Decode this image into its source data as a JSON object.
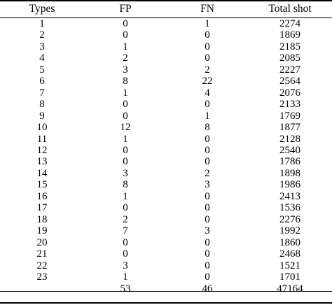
{
  "table": {
    "headers": [
      "Types",
      "FP",
      "FN",
      "Total shot"
    ],
    "rows": [
      [
        "1",
        "0",
        "1",
        "2274"
      ],
      [
        "2",
        "0",
        "0",
        "1869"
      ],
      [
        "3",
        "1",
        "0",
        "2185"
      ],
      [
        "4",
        "2",
        "0",
        "2085"
      ],
      [
        "5",
        "3",
        "2",
        "2227"
      ],
      [
        "6",
        "8",
        "22",
        "2564"
      ],
      [
        "7",
        "1",
        "4",
        "2076"
      ],
      [
        "8",
        "0",
        "0",
        "2133"
      ],
      [
        "9",
        "0",
        "1",
        "1769"
      ],
      [
        "10",
        "12",
        "8",
        "1877"
      ],
      [
        "11",
        "1",
        "0",
        "2128"
      ],
      [
        "12",
        "0",
        "0",
        "2540"
      ],
      [
        "13",
        "0",
        "0",
        "1786"
      ],
      [
        "14",
        "3",
        "2",
        "1898"
      ],
      [
        "15",
        "8",
        "3",
        "1986"
      ],
      [
        "16",
        "1",
        "0",
        "2413"
      ],
      [
        "17",
        "0",
        "0",
        "1536"
      ],
      [
        "18",
        "2",
        "0",
        "2276"
      ],
      [
        "19",
        "7",
        "3",
        "1992"
      ],
      [
        "20",
        "0",
        "0",
        "1860"
      ],
      [
        "21",
        "0",
        "0",
        "2468"
      ],
      [
        "22",
        "3",
        "0",
        "1521"
      ],
      [
        "23",
        "1",
        "0",
        "1701"
      ]
    ],
    "total": [
      "",
      "53",
      "46",
      "47164"
    ]
  }
}
